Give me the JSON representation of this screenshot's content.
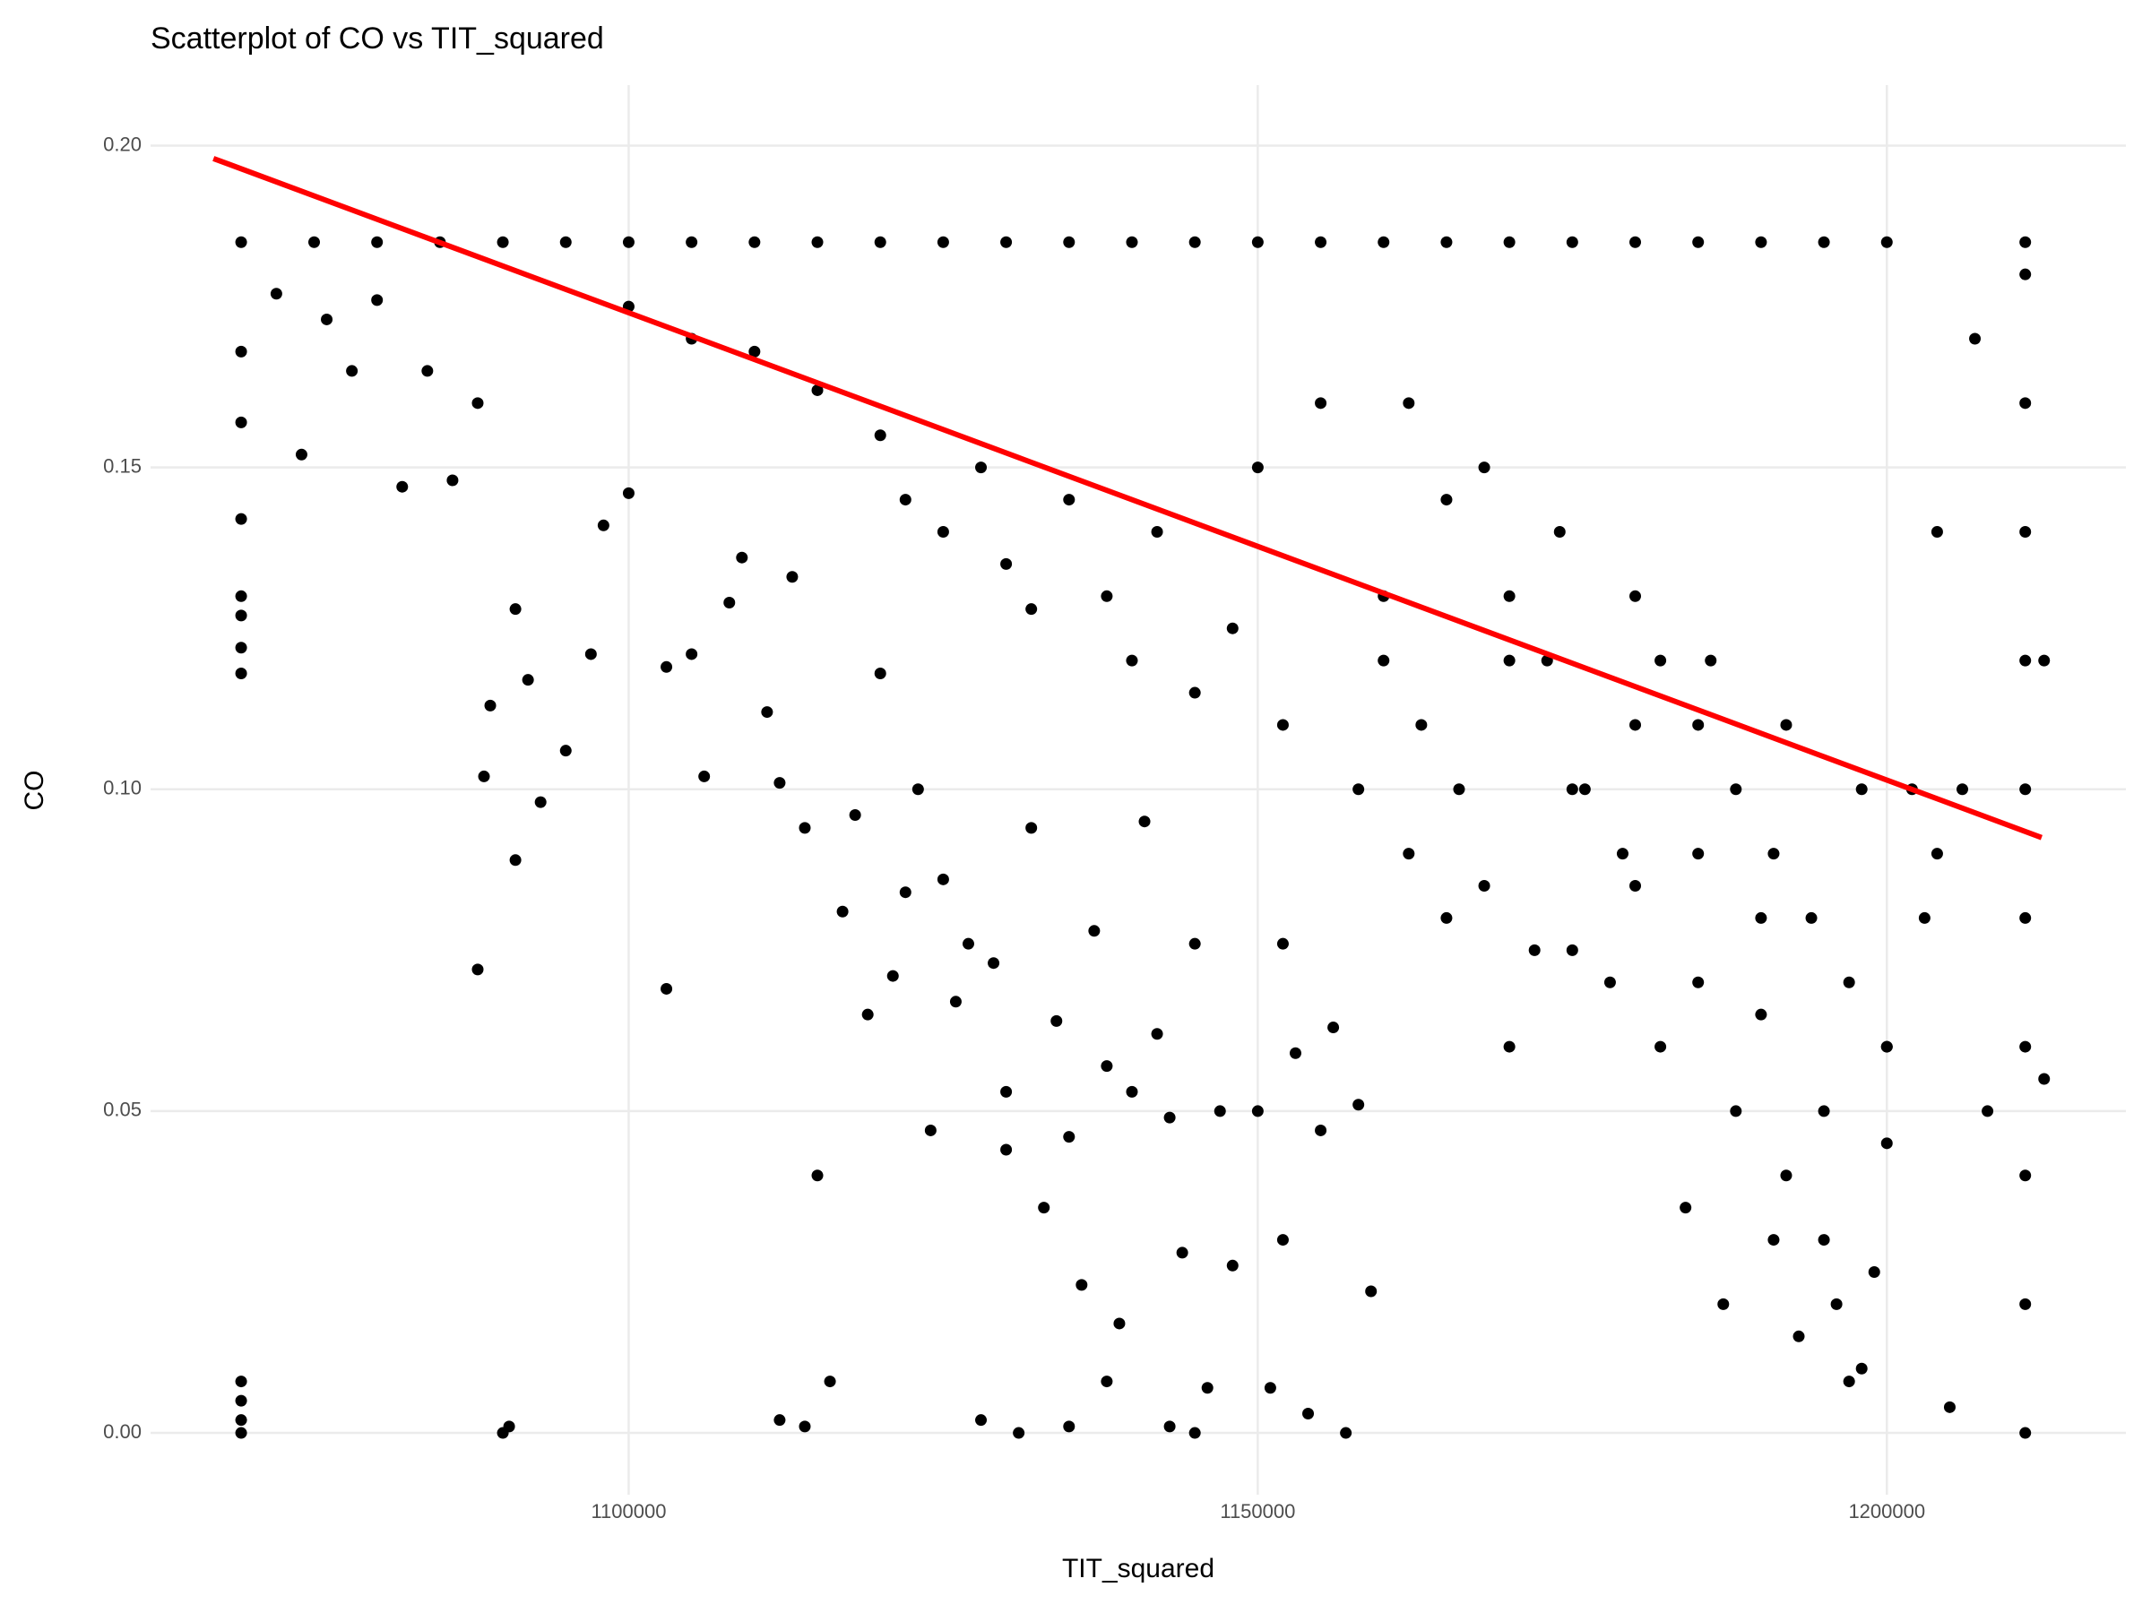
{
  "chart_data": {
    "type": "scatter",
    "title": "Scatterplot of CO vs TIT_squared",
    "x_label": "TIT_squared",
    "y_label": "CO",
    "color": "#000000",
    "grid": true,
    "xlim": [
      1062000,
      1219000
    ],
    "ylim": [
      -0.0096,
      0.2094
    ],
    "xticks": [
      1100000,
      1150000,
      1200000
    ],
    "yticks": [
      {
        "value": 0,
        "label": "0.00"
      },
      {
        "value": 0.05,
        "label": "0.05"
      },
      {
        "value": 0.1,
        "label": "0.10"
      },
      {
        "value": 0.15,
        "label": "0.15"
      },
      {
        "value": 0.2,
        "label": "0.20"
      }
    ],
    "x": [
      1069200,
      1075000,
      1080000,
      1085000,
      1090000,
      1095000,
      1100000,
      1105000,
      1110000,
      1115000,
      1120000,
      1125000,
      1130000,
      1135000,
      1140000,
      1145000,
      1150000,
      1155000,
      1160000,
      1165000,
      1170000,
      1175000,
      1180000,
      1185000,
      1190000,
      1195000,
      1200000,
      1211000,
      1069200,
      1069200,
      1069200,
      1069200,
      1069200,
      1069200,
      1069200,
      1069200,
      1069200,
      1069200,
      1069200,
      1072000,
      1074000,
      1076000,
      1078000,
      1080000,
      1082000,
      1084000,
      1086000,
      1088000,
      1088000,
      1088500,
      1089000,
      1090000,
      1090500,
      1091000,
      1091000,
      1092000,
      1093000,
      1095000,
      1097000,
      1098000,
      1100000,
      1103000,
      1103000,
      1105000,
      1106000,
      1108000,
      1109000,
      1111000,
      1112000,
      1113000,
      1114000,
      1115000,
      1116000,
      1112000,
      1114000,
      1117000,
      1118000,
      1119000,
      1120000,
      1121000,
      1122000,
      1123000,
      1124000,
      1125000,
      1126000,
      1127000,
      1128000,
      1129000,
      1130000,
      1130000,
      1131000,
      1132000,
      1133000,
      1134000,
      1135000,
      1135000,
      1136000,
      1137000,
      1138000,
      1138000,
      1139000,
      1140000,
      1141000,
      1142000,
      1143000,
      1143000,
      1144000,
      1145000,
      1145000,
      1146000,
      1147000,
      1148000,
      1150000,
      1151000,
      1152000,
      1152000,
      1153000,
      1154000,
      1155000,
      1156000,
      1157000,
      1158000,
      1159000,
      1100000,
      1105000,
      1110000,
      1115000,
      1120000,
      1122000,
      1125000,
      1128000,
      1130000,
      1132000,
      1135000,
      1138000,
      1140000,
      1142000,
      1145000,
      1148000,
      1150000,
      1152000,
      1155000,
      1158000,
      1160000,
      1162000,
      1165000,
      1168000,
      1170000,
      1172000,
      1175000,
      1178000,
      1180000,
      1182000,
      1185000,
      1188000,
      1190000,
      1192000,
      1195000,
      1196000,
      1198000,
      1200000,
      1202000,
      1204000,
      1205000,
      1207000,
      1208000,
      1160000,
      1163000,
      1166000,
      1170000,
      1173000,
      1176000,
      1179000,
      1182000,
      1185000,
      1188000,
      1191000,
      1194000,
      1197000,
      1200000,
      1203000,
      1206000,
      1162000,
      1168000,
      1174000,
      1180000,
      1186000,
      1192000,
      1198000,
      1204000,
      1165000,
      1175000,
      1185000,
      1195000,
      1170000,
      1180000,
      1190000,
      1200000,
      1187000,
      1193000,
      1199000,
      1184000,
      1191000,
      1197000,
      1211000,
      1211000,
      1211000,
      1211000,
      1211000,
      1211000,
      1211000,
      1211000,
      1211000,
      1211000,
      1212500,
      1212500
    ],
    "values": [
      0.185,
      0.185,
      0.185,
      0.185,
      0.185,
      0.185,
      0.185,
      0.185,
      0.185,
      0.185,
      0.185,
      0.185,
      0.185,
      0.185,
      0.185,
      0.185,
      0.185,
      0.185,
      0.185,
      0.185,
      0.185,
      0.185,
      0.185,
      0.185,
      0.185,
      0.185,
      0.185,
      0.185,
      0.168,
      0.157,
      0.142,
      0.13,
      0.127,
      0.122,
      0.118,
      0.008,
      0.005,
      0.002,
      0,
      0.177,
      0.152,
      0.173,
      0.165,
      0.176,
      0.147,
      0.165,
      0.148,
      0.16,
      0.072,
      0.102,
      0.113,
      0,
      0.001,
      0.089,
      0.128,
      0.117,
      0.098,
      0.106,
      0.121,
      0.141,
      0.146,
      0.119,
      0.069,
      0.121,
      0.102,
      0.129,
      0.136,
      0.112,
      0.101,
      0.133,
      0.094,
      0.04,
      0.008,
      0.002,
      0.001,
      0.081,
      0.096,
      0.065,
      0.118,
      0.071,
      0.084,
      0.1,
      0.047,
      0.086,
      0.067,
      0.076,
      0.002,
      0.073,
      0.044,
      0.053,
      0,
      0.094,
      0.035,
      0.064,
      0.046,
      0.001,
      0.023,
      0.078,
      0.057,
      0.008,
      0.017,
      0.053,
      0.095,
      0.062,
      0.049,
      0.001,
      0.028,
      0.076,
      0,
      0.007,
      0.05,
      0.026,
      0.05,
      0.007,
      0.03,
      0.076,
      0.059,
      0.003,
      0.047,
      0.063,
      0,
      0.051,
      0.022,
      0.175,
      0.17,
      0.168,
      0.162,
      0.155,
      0.145,
      0.14,
      0.15,
      0.135,
      0.128,
      0.145,
      0.13,
      0.12,
      0.14,
      0.115,
      0.125,
      0.15,
      0.11,
      0.16,
      0.1,
      0.13,
      0.09,
      0.145,
      0.085,
      0.12,
      0.075,
      0.1,
      0.07,
      0.11,
      0.06,
      0.09,
      0.05,
      0.08,
      0.04,
      0.03,
      0.02,
      0.01,
      0.06,
      0.1,
      0.14,
      0.004,
      0.17,
      0.05,
      0.12,
      0.11,
      0.1,
      0.13,
      0.12,
      0.1,
      0.09,
      0.12,
      0.11,
      0.1,
      0.09,
      0.08,
      0.07,
      0.06,
      0.08,
      0.1,
      0.16,
      0.15,
      0.14,
      0.13,
      0.12,
      0.11,
      0.1,
      0.09,
      0.08,
      0.075,
      0.07,
      0.05,
      0.06,
      0.085,
      0.065,
      0.045,
      0.02,
      0.015,
      0.025,
      0.035,
      0.03,
      0.008,
      0,
      0.02,
      0.04,
      0.06,
      0.08,
      0.1,
      0.12,
      0.14,
      0.16,
      0.18,
      0.12,
      0.055
    ],
    "trend": {
      "x": [
        1067000,
        1212300
      ],
      "values": [
        0.198,
        0.0925
      ],
      "color": "#ff0000"
    }
  }
}
